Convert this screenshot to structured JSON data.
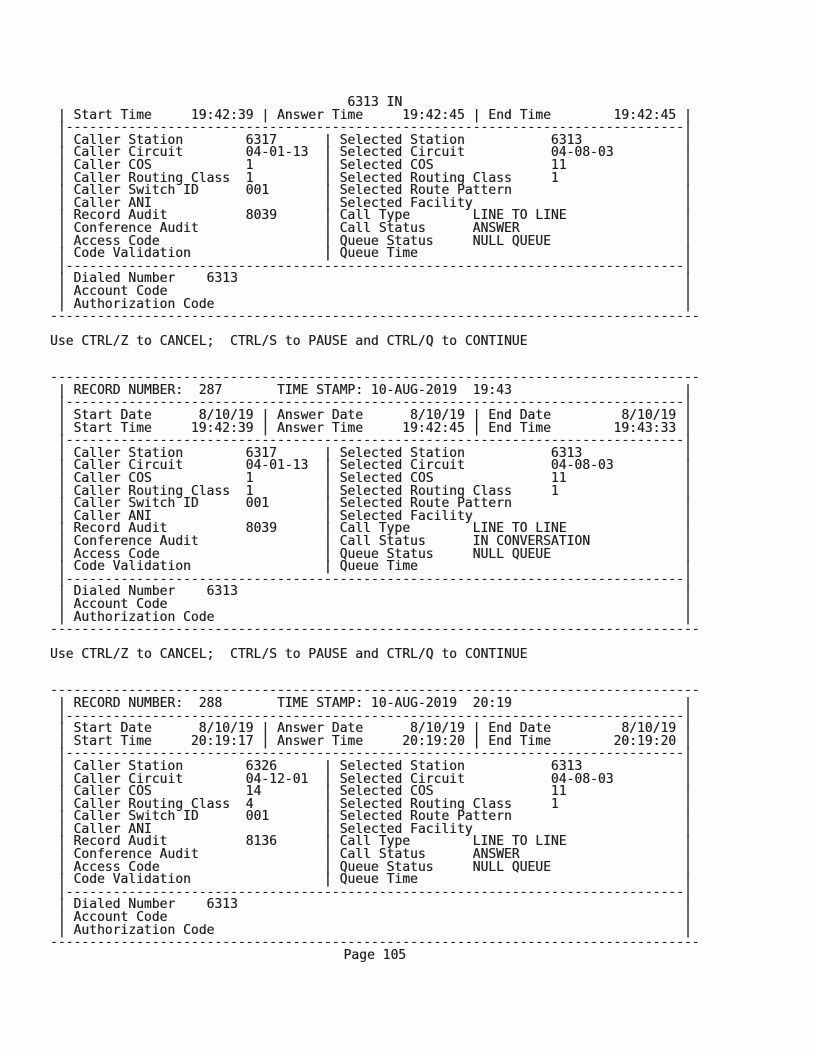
{
  "page": {
    "ctrl_message": "Use CTRL/Z to CANCEL;  CTRL/S to PAUSE and CTRL/Q to CONTINUE",
    "footer": "Page 105"
  },
  "colors": {
    "ink": "#1c1c1c",
    "paper": "#fdfdfc"
  },
  "chrome": {
    "pipe": "|",
    "outer_divider": "-----------------------------------------------------------------------------------",
    "inner_divider": " |-------------------------------------------------------------------------------|"
  },
  "live_record": {
    "title": "6313 IN",
    "times": [
      {
        "label": "Start Time",
        "value": "19:42:39"
      },
      {
        "label": "Answer Time",
        "value": "19:42:45"
      },
      {
        "label": "End Time",
        "value": "19:42:45"
      }
    ],
    "caller": [
      {
        "label": "Caller Station",
        "value": "6317"
      },
      {
        "label": "Caller Circuit",
        "value": "04-01-13"
      },
      {
        "label": "Caller COS",
        "value": "1"
      },
      {
        "label": "Caller Routing Class",
        "value": "1"
      },
      {
        "label": "Caller Switch ID",
        "value": "001"
      },
      {
        "label": "Caller ANI",
        "value": ""
      },
      {
        "label": "Record Audit",
        "value": "8039"
      },
      {
        "label": "Conference Audit",
        "value": ""
      },
      {
        "label": "Access Code",
        "value": ""
      },
      {
        "label": "Code Validation",
        "value": ""
      }
    ],
    "selected": [
      {
        "label": "Selected Station",
        "value": "6313"
      },
      {
        "label": "Selected Circuit",
        "value": "04-08-03"
      },
      {
        "label": "Selected COS",
        "value": "11"
      },
      {
        "label": "Selected Routing Class",
        "value": "1"
      },
      {
        "label": "Selected Route Pattern",
        "value": ""
      },
      {
        "label": "Selected Facility",
        "value": ""
      },
      {
        "label": "Call Type",
        "value": "LINE TO LINE"
      },
      {
        "label": "Call Status",
        "value": "ANSWER"
      },
      {
        "label": "Queue Status",
        "value": "NULL QUEUE"
      },
      {
        "label": "Queue Time",
        "value": ""
      }
    ],
    "bottom": [
      {
        "label": "Dialed Number",
        "value": "6313"
      },
      {
        "label": "Account Code",
        "value": ""
      },
      {
        "label": "Authorization Code",
        "value": ""
      }
    ]
  },
  "records": [
    {
      "header": {
        "label": "RECORD NUMBER:",
        "number": "287",
        "ts_label": "TIME STAMP:",
        "ts_value": "10-AUG-2019  19:43"
      },
      "dates": [
        {
          "label": "Start Date",
          "value": "8/10/19"
        },
        {
          "label": "Answer Date",
          "value": "8/10/19"
        },
        {
          "label": "End Date",
          "value": "8/10/19"
        }
      ],
      "times": [
        {
          "label": "Start Time",
          "value": "19:42:39"
        },
        {
          "label": "Answer Time",
          "value": "19:42:45"
        },
        {
          "label": "End Time",
          "value": "19:43:33"
        }
      ],
      "caller": [
        {
          "label": "Caller Station",
          "value": "6317"
        },
        {
          "label": "Caller Circuit",
          "value": "04-01-13"
        },
        {
          "label": "Caller COS",
          "value": "1"
        },
        {
          "label": "Caller Routing Class",
          "value": "1"
        },
        {
          "label": "Caller Switch ID",
          "value": "001"
        },
        {
          "label": "Caller ANI",
          "value": ""
        },
        {
          "label": "Record Audit",
          "value": "8039"
        },
        {
          "label": "Conference Audit",
          "value": ""
        },
        {
          "label": "Access Code",
          "value": ""
        },
        {
          "label": "Code Validation",
          "value": ""
        }
      ],
      "selected": [
        {
          "label": "Selected Station",
          "value": "6313"
        },
        {
          "label": "Selected Circuit",
          "value": "04-08-03"
        },
        {
          "label": "Selected COS",
          "value": "11"
        },
        {
          "label": "Selected Routing Class",
          "value": "1"
        },
        {
          "label": "Selected Route Pattern",
          "value": ""
        },
        {
          "label": "Selected Facility",
          "value": ""
        },
        {
          "label": "Call Type",
          "value": "LINE TO LINE"
        },
        {
          "label": "Call Status",
          "value": "IN CONVERSATION"
        },
        {
          "label": "Queue Status",
          "value": "NULL QUEUE"
        },
        {
          "label": "Queue Time",
          "value": ""
        }
      ],
      "bottom": [
        {
          "label": "Dialed Number",
          "value": "6313"
        },
        {
          "label": "Account Code",
          "value": ""
        },
        {
          "label": "Authorization Code",
          "value": ""
        }
      ]
    },
    {
      "header": {
        "label": "RECORD NUMBER:",
        "number": "288",
        "ts_label": "TIME STAMP:",
        "ts_value": "10-AUG-2019  20:19"
      },
      "dates": [
        {
          "label": "Start Date",
          "value": "8/10/19"
        },
        {
          "label": "Answer Date",
          "value": "8/10/19"
        },
        {
          "label": "End Date",
          "value": "8/10/19"
        }
      ],
      "times": [
        {
          "label": "Start Time",
          "value": "20:19:17"
        },
        {
          "label": "Answer Time",
          "value": "20:19:20"
        },
        {
          "label": "End Time",
          "value": "20:19:20"
        }
      ],
      "caller": [
        {
          "label": "Caller Station",
          "value": "6326"
        },
        {
          "label": "Caller Circuit",
          "value": "04-12-01"
        },
        {
          "label": "Caller COS",
          "value": "14"
        },
        {
          "label": "Caller Routing Class",
          "value": "4"
        },
        {
          "label": "Caller Switch ID",
          "value": "001"
        },
        {
          "label": "Caller ANI",
          "value": ""
        },
        {
          "label": "Record Audit",
          "value": "8136"
        },
        {
          "label": "Conference Audit",
          "value": ""
        },
        {
          "label": "Access Code",
          "value": ""
        },
        {
          "label": "Code Validation",
          "value": ""
        }
      ],
      "selected": [
        {
          "label": "Selected Station",
          "value": "6313"
        },
        {
          "label": "Selected Circuit",
          "value": "04-08-03"
        },
        {
          "label": "Selected COS",
          "value": "11"
        },
        {
          "label": "Selected Routing Class",
          "value": "1"
        },
        {
          "label": "Selected Route Pattern",
          "value": ""
        },
        {
          "label": "Selected Facility",
          "value": ""
        },
        {
          "label": "Call Type",
          "value": "LINE TO LINE"
        },
        {
          "label": "Call Status",
          "value": "ANSWER"
        },
        {
          "label": "Queue Status",
          "value": "NULL QUEUE"
        },
        {
          "label": "Queue Time",
          "value": ""
        }
      ],
      "bottom": [
        {
          "label": "Dialed Number",
          "value": "6313"
        },
        {
          "label": "Account Code",
          "value": ""
        },
        {
          "label": "Authorization Code",
          "value": ""
        }
      ]
    }
  ]
}
